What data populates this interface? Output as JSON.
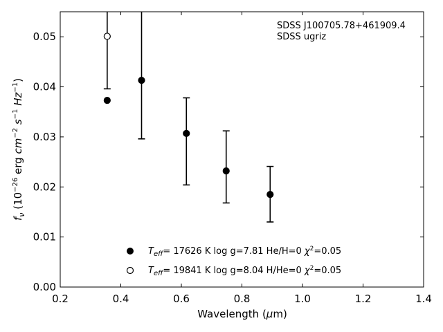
{
  "chart_data": {
    "type": "scatter",
    "xlabel": "Wavelength (μm)",
    "ylabel": "f_ν (10^−26 erg cm^−2 s^−1 Hz^−1)",
    "xlim": [
      0.2,
      1.4
    ],
    "ylim": [
      0.0,
      0.055
    ],
    "x_ticks": [
      "0.2",
      "0.4",
      "0.6",
      "0.8",
      "1.0",
      "1.2",
      "1.4"
    ],
    "y_ticks": [
      "0.00",
      "0.01",
      "0.02",
      "0.03",
      "0.04",
      "0.05"
    ],
    "grid": false,
    "legend_position": "bottom-center",
    "annotations": [
      "SDSS J100705.78+461909.4",
      "SDSS ugriz"
    ],
    "observed": {
      "x": [
        0.3551,
        0.4686,
        0.6166,
        0.748,
        0.8932
      ],
      "y": [
        0.0501,
        0.0413,
        0.0307,
        0.0232,
        0.0185
      ],
      "err_low": [
        0.0396,
        0.0296,
        0.0204,
        0.0168,
        0.013
      ],
      "err_high": [
        0.06,
        0.058,
        0.0378,
        0.0312,
        0.0241
      ],
      "first_point_open": true
    },
    "series": [
      {
        "name": "T_eff= 17626 K  log g=7.81  He/H=0  χ²=0.05",
        "marker": "filled",
        "x": [
          0.3551,
          0.4686,
          0.6166,
          0.748,
          0.8932
        ],
        "y": [
          0.0373,
          0.0413,
          0.0307,
          0.0232,
          0.0185
        ]
      },
      {
        "name": "T_eff= 19841 K  log g=8.04  H/He=0  χ²=0.05",
        "marker": "open",
        "x": [
          0.3551
        ],
        "y": [
          0.0501
        ]
      }
    ]
  }
}
